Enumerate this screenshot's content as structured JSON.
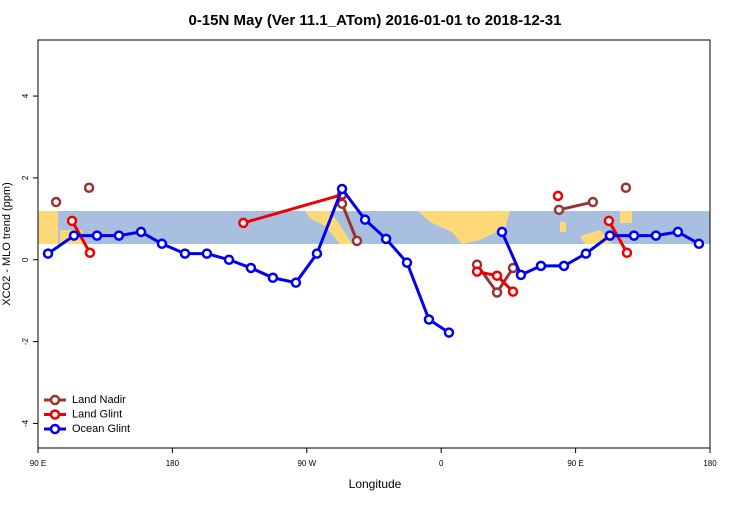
{
  "chart_data": {
    "type": "line",
    "title": "0-15N May (Ver 11.1_ATom)   2016-01-01 to 2018-12-31",
    "x_label": "Longitude",
    "y_label": "XCO2 - MLO trend (ppm)",
    "xlim": [
      90,
      540
    ],
    "ylim": [
      -4.6,
      5.37
    ],
    "xticks": [
      {
        "value": 90,
        "label": "90 E"
      },
      180,
      {
        "value": 270,
        "label": "90 W"
      },
      {
        "value": 360,
        "label": "0"
      },
      {
        "value": 450,
        "label": "90 E"
      },
      {
        "value": 540,
        "label": "180"
      }
    ],
    "yticks": [
      -4,
      -2,
      0,
      2,
      4
    ],
    "legend": "bottom-left",
    "series": [
      {
        "name": "Land Nadir",
        "color": "#993333",
        "x": [
          102.1,
          null,
          124.2,
          null,
          293.6,
          303.6,
          null,
          384.0,
          397.4,
          408.1,
          null,
          438.9,
          461.6,
          null,
          483.7
        ],
        "values": [
          1.41,
          null,
          1.76,
          null,
          1.37,
          0.46,
          null,
          -0.12,
          -0.8,
          -0.2,
          null,
          1.22,
          1.41,
          null,
          1.76
        ]
      },
      {
        "name": "Land Glint",
        "color": "#ee0000",
        "x": [
          112.8,
          124.8,
          null,
          227.5,
          293.6,
          null,
          384.0,
          397.4,
          408.1,
          null,
          438.2,
          null,
          472.3,
          484.4
        ],
        "values": [
          0.95,
          0.17,
          null,
          0.9,
          1.59,
          null,
          -0.29,
          -0.39,
          -0.78,
          null,
          1.56,
          null,
          0.95,
          0.17
        ]
      },
      {
        "name": "Ocean Glint",
        "color": "#0000ee",
        "x": [
          96.7,
          114.1,
          129.5,
          144.2,
          159.0,
          173.0,
          188.4,
          203.1,
          217.9,
          232.6,
          247.3,
          262.7,
          276.8,
          293.6,
          309.0,
          323.1,
          337.1,
          351.8,
          365.2,
          null,
          400.7,
          413.4,
          426.8,
          442.2,
          456.9,
          473.0,
          489.1,
          503.8,
          518.5,
          532.6
        ],
        "values": [
          0.15,
          0.59,
          0.59,
          0.59,
          0.68,
          0.39,
          0.15,
          0.15,
          0.0,
          -0.2,
          -0.44,
          -0.56,
          0.15,
          1.73,
          0.98,
          0.51,
          -0.07,
          -1.46,
          -1.78,
          null,
          0.68,
          -0.37,
          -0.15,
          -0.15,
          0.15,
          0.59,
          0.59,
          0.59,
          0.68,
          0.39
        ]
      }
    ]
  }
}
